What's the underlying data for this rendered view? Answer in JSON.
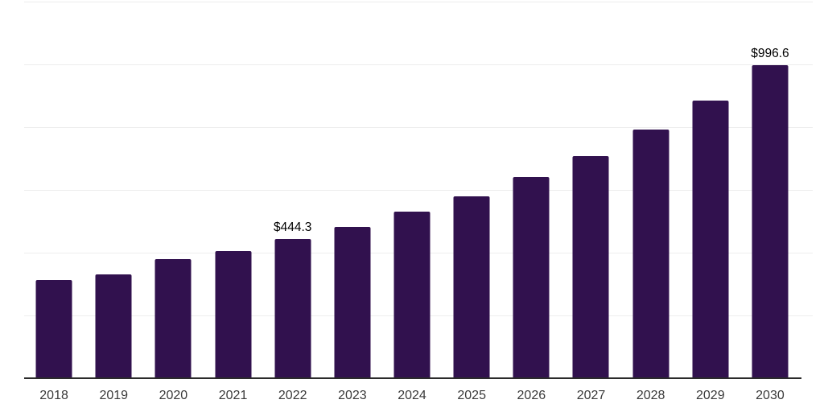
{
  "chart_data": {
    "type": "bar",
    "title": "",
    "xlabel": "",
    "ylabel": "",
    "categories": [
      "2018",
      "2019",
      "2020",
      "2021",
      "2022",
      "2023",
      "2024",
      "2025",
      "2026",
      "2027",
      "2028",
      "2029",
      "2030"
    ],
    "values": [
      312,
      331,
      379,
      405,
      444.3,
      483,
      531,
      580,
      641,
      709,
      792,
      886,
      996.6
    ],
    "point_labels": [
      "",
      "",
      "",
      "",
      "$444.3",
      "",
      "",
      "",
      "",
      "",
      "",
      "",
      "$996.6"
    ],
    "ylim": [
      0,
      1200
    ],
    "gridline_step": 200,
    "grid": "horizontal",
    "legend": "none",
    "y_axis_tick_labels_visible": false
  },
  "colors": {
    "bar": "#31114e",
    "gridline": "#ededed",
    "axis_line": "#2b2b2b",
    "value_label": "#000000",
    "tick_label": "#3a3a3a",
    "background": "#ffffff"
  }
}
